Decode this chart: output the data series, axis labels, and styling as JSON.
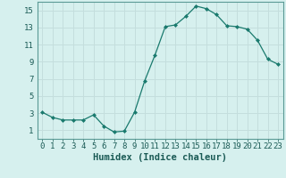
{
  "x": [
    0,
    1,
    2,
    3,
    4,
    5,
    6,
    7,
    8,
    9,
    10,
    11,
    12,
    13,
    14,
    15,
    16,
    17,
    18,
    19,
    20,
    21,
    22,
    23
  ],
  "y": [
    3.1,
    2.5,
    2.2,
    2.2,
    2.2,
    2.8,
    1.5,
    0.8,
    0.9,
    3.1,
    6.8,
    9.8,
    13.1,
    13.3,
    14.3,
    15.5,
    15.2,
    14.5,
    13.2,
    13.1,
    12.8,
    11.5,
    9.3,
    8.7
  ],
  "xlim": [
    -0.5,
    23.5
  ],
  "ylim": [
    0,
    16
  ],
  "yticks": [
    1,
    3,
    5,
    7,
    9,
    11,
    13,
    15
  ],
  "xticks": [
    0,
    1,
    2,
    3,
    4,
    5,
    6,
    7,
    8,
    9,
    10,
    11,
    12,
    13,
    14,
    15,
    16,
    17,
    18,
    19,
    20,
    21,
    22,
    23
  ],
  "xlabel": "Humidex (Indice chaleur)",
  "line_color": "#1a7a6e",
  "marker": "D",
  "marker_size": 2,
  "bg_color": "#d6f0ee",
  "grid_color": "#c4dedd",
  "tick_label_fontsize": 6.5,
  "xlabel_fontsize": 7.5,
  "spine_color": "#5a9a95"
}
